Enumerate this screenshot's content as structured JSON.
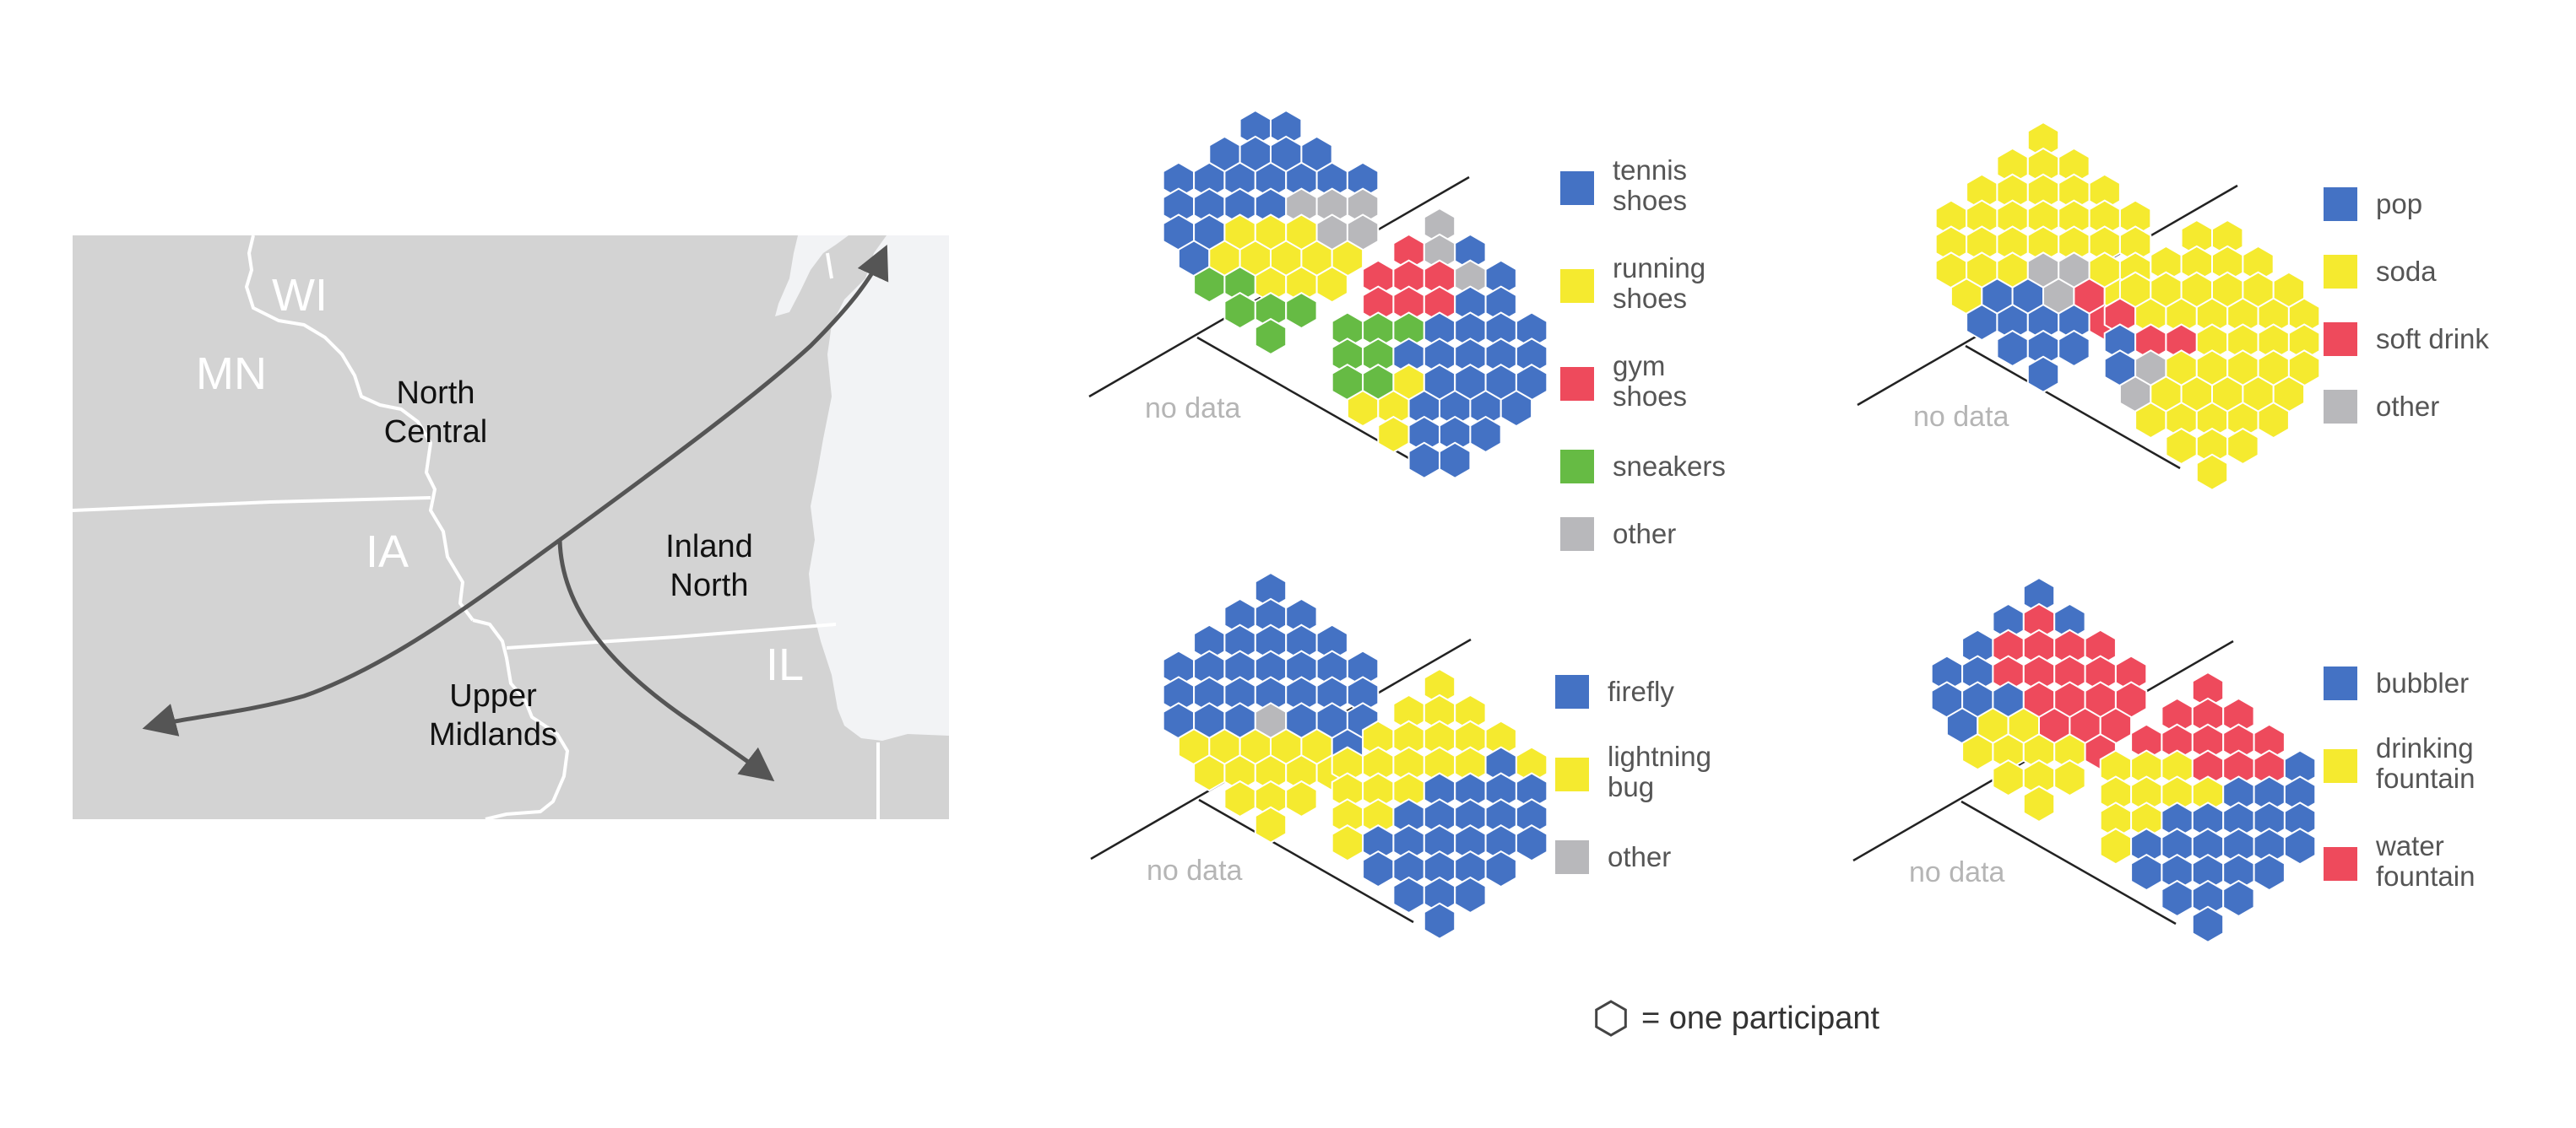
{
  "colors": {
    "blue": "#4472c4",
    "yellow": "#f5ea2f",
    "red": "#ee4a5c",
    "green": "#66bb44",
    "gray": "#b8b8bb",
    "land": "#d3d3d3",
    "lake": "#f2f3f5",
    "border": "#ffffff",
    "arrow": "#555555",
    "line": "#222222",
    "nodata": "#b5b5b5",
    "label": "#555555"
  },
  "map": {
    "states": [
      "WI",
      "MN",
      "IA",
      "IL"
    ],
    "regions": {
      "north_central": [
        "North",
        "Central"
      ],
      "inland_north": [
        "Inland",
        "North"
      ],
      "upper_midlands": [
        "Upper",
        "Midlands"
      ]
    }
  },
  "no_data_label": "no data",
  "key_label": "= one participant",
  "panels": [
    {
      "id": "shoes",
      "legend": [
        {
          "color": "blue",
          "lines": [
            "tennis",
            "shoes"
          ]
        },
        {
          "color": "yellow",
          "lines": [
            "running",
            "shoes"
          ]
        },
        {
          "color": "red",
          "lines": [
            "gym",
            "shoes"
          ]
        },
        {
          "color": "green",
          "lines": [
            "sneakers"
          ]
        },
        {
          "color": "gray",
          "lines": [
            "other"
          ]
        }
      ],
      "north_cluster": [
        [
          "blue",
          "blue"
        ],
        [
          "blue",
          "blue",
          "blue",
          "blue"
        ],
        [
          "blue",
          "blue",
          "blue",
          "blue",
          "blue",
          "blue",
          "blue"
        ],
        [
          "blue",
          "blue",
          "blue",
          "blue",
          "gray",
          "gray",
          "gray"
        ],
        [
          "blue",
          "blue",
          "yellow",
          "yellow",
          "yellow",
          "gray",
          "gray"
        ],
        [
          "blue",
          "yellow",
          "yellow",
          "yellow",
          "yellow",
          "yellow"
        ],
        [
          "green",
          "green",
          "yellow",
          "yellow",
          "yellow"
        ],
        [
          "green",
          "green",
          "green"
        ],
        [
          "green"
        ]
      ],
      "south_cluster": [
        [
          "gray"
        ],
        [
          "red",
          "gray",
          "blue"
        ],
        [
          "red",
          "red",
          "red",
          "gray",
          "blue"
        ],
        [
          "red",
          "red",
          "red",
          "blue",
          "blue"
        ],
        [
          "green",
          "green",
          "green",
          "blue",
          "blue",
          "blue",
          "blue"
        ],
        [
          "green",
          "green",
          "blue",
          "blue",
          "blue",
          "blue",
          "blue"
        ],
        [
          "green",
          "green",
          "yellow",
          "blue",
          "blue",
          "blue",
          "blue"
        ],
        [
          "yellow",
          "yellow",
          "blue",
          "blue",
          "blue",
          "blue"
        ],
        [
          "yellow",
          "blue",
          "blue",
          "blue"
        ],
        [
          "blue",
          "blue"
        ]
      ]
    },
    {
      "id": "soda",
      "legend": [
        {
          "color": "blue",
          "lines": [
            "pop"
          ]
        },
        {
          "color": "yellow",
          "lines": [
            "soda"
          ]
        },
        {
          "color": "red",
          "lines": [
            "soft drink"
          ]
        },
        {
          "color": "gray",
          "lines": [
            "other"
          ]
        }
      ],
      "north_cluster": [
        [
          "yellow"
        ],
        [
          "yellow",
          "yellow",
          "yellow"
        ],
        [
          "yellow",
          "yellow",
          "yellow",
          "yellow",
          "yellow"
        ],
        [
          "yellow",
          "yellow",
          "yellow",
          "yellow",
          "yellow",
          "yellow",
          "yellow"
        ],
        [
          "yellow",
          "yellow",
          "yellow",
          "yellow",
          "yellow",
          "yellow",
          "yellow"
        ],
        [
          "yellow",
          "yellow",
          "yellow",
          "gray",
          "gray",
          "yellow",
          "yellow"
        ],
        [
          "yellow",
          "blue",
          "blue",
          "gray",
          "red",
          "yellow"
        ],
        [
          "blue",
          "blue",
          "blue",
          "blue",
          "red"
        ],
        [
          "blue",
          "blue",
          "blue"
        ],
        [
          "blue"
        ]
      ],
      "south_cluster": [
        [
          "yellow",
          "yellow"
        ],
        [
          "yellow",
          "yellow",
          "yellow",
          "yellow"
        ],
        [
          "yellow",
          "yellow",
          "yellow",
          "yellow",
          "yellow",
          "yellow"
        ],
        [
          "red",
          "yellow",
          "yellow",
          "yellow",
          "yellow",
          "yellow",
          "yellow"
        ],
        [
          "blue",
          "red",
          "red",
          "yellow",
          "yellow",
          "yellow",
          "yellow"
        ],
        [
          "blue",
          "gray",
          "yellow",
          "yellow",
          "yellow",
          "yellow",
          "yellow"
        ],
        [
          "gray",
          "yellow",
          "yellow",
          "yellow",
          "yellow",
          "yellow"
        ],
        [
          "yellow",
          "yellow",
          "yellow",
          "yellow",
          "yellow"
        ],
        [
          "yellow",
          "yellow",
          "yellow"
        ],
        [
          "yellow"
        ]
      ]
    },
    {
      "id": "bug",
      "legend": [
        {
          "color": "blue",
          "lines": [
            "firefly"
          ]
        },
        {
          "color": "yellow",
          "lines": [
            "lightning",
            "bug"
          ]
        },
        {
          "color": "gray",
          "lines": [
            "other"
          ]
        }
      ],
      "north_cluster": [
        [
          "blue"
        ],
        [
          "blue",
          "blue",
          "blue"
        ],
        [
          "blue",
          "blue",
          "blue",
          "blue",
          "blue"
        ],
        [
          "blue",
          "blue",
          "blue",
          "blue",
          "blue",
          "blue",
          "blue"
        ],
        [
          "blue",
          "blue",
          "blue",
          "blue",
          "blue",
          "blue",
          "blue"
        ],
        [
          "blue",
          "blue",
          "blue",
          "gray",
          "blue",
          "blue",
          "blue"
        ],
        [
          "yellow",
          "yellow",
          "yellow",
          "yellow",
          "yellow",
          "blue"
        ],
        [
          "yellow",
          "yellow",
          "yellow",
          "yellow",
          "yellow"
        ],
        [
          "yellow",
          "yellow",
          "yellow"
        ],
        [
          "yellow"
        ]
      ],
      "south_cluster": [
        [
          "yellow"
        ],
        [
          "yellow",
          "yellow",
          "yellow"
        ],
        [
          "yellow",
          "yellow",
          "yellow",
          "yellow",
          "yellow"
        ],
        [
          "yellow",
          "yellow",
          "yellow",
          "yellow",
          "yellow",
          "blue",
          "yellow"
        ],
        [
          "yellow",
          "yellow",
          "yellow",
          "blue",
          "blue",
          "blue",
          "blue"
        ],
        [
          "yellow",
          "yellow",
          "blue",
          "blue",
          "blue",
          "blue",
          "blue"
        ],
        [
          "yellow",
          "blue",
          "blue",
          "blue",
          "blue",
          "blue",
          "blue"
        ],
        [
          "blue",
          "blue",
          "blue",
          "blue",
          "blue"
        ],
        [
          "blue",
          "blue",
          "blue"
        ],
        [
          "blue"
        ]
      ]
    },
    {
      "id": "fountain",
      "legend": [
        {
          "color": "blue",
          "lines": [
            "bubbler"
          ]
        },
        {
          "color": "yellow",
          "lines": [
            "drinking",
            "fountain"
          ]
        },
        {
          "color": "red",
          "lines": [
            "water",
            "fountain"
          ]
        }
      ],
      "north_cluster": [
        [
          "blue"
        ],
        [
          "blue",
          "red",
          "blue"
        ],
        [
          "blue",
          "red",
          "red",
          "red",
          "red"
        ],
        [
          "blue",
          "blue",
          "red",
          "red",
          "red",
          "red",
          "red"
        ],
        [
          "blue",
          "blue",
          "blue",
          "red",
          "red",
          "red",
          "red"
        ],
        [
          "blue",
          "yellow",
          "yellow",
          "red",
          "red",
          "red"
        ],
        [
          "yellow",
          "yellow",
          "yellow",
          "yellow",
          "red"
        ],
        [
          "yellow",
          "yellow",
          "yellow"
        ],
        [
          "yellow"
        ]
      ],
      "south_cluster": [
        [
          "red"
        ],
        [
          "red",
          "red",
          "red"
        ],
        [
          "red",
          "red",
          "red",
          "red",
          "red"
        ],
        [
          "yellow",
          "yellow",
          "yellow",
          "red",
          "red",
          "red",
          "blue"
        ],
        [
          "yellow",
          "yellow",
          "yellow",
          "yellow",
          "blue",
          "blue",
          "blue"
        ],
        [
          "yellow",
          "yellow",
          "blue",
          "blue",
          "blue",
          "blue",
          "blue"
        ],
        [
          "yellow",
          "blue",
          "blue",
          "blue",
          "blue",
          "blue",
          "blue"
        ],
        [
          "blue",
          "blue",
          "blue",
          "blue",
          "blue"
        ],
        [
          "blue",
          "blue",
          "blue"
        ],
        [
          "blue"
        ]
      ]
    }
  ]
}
